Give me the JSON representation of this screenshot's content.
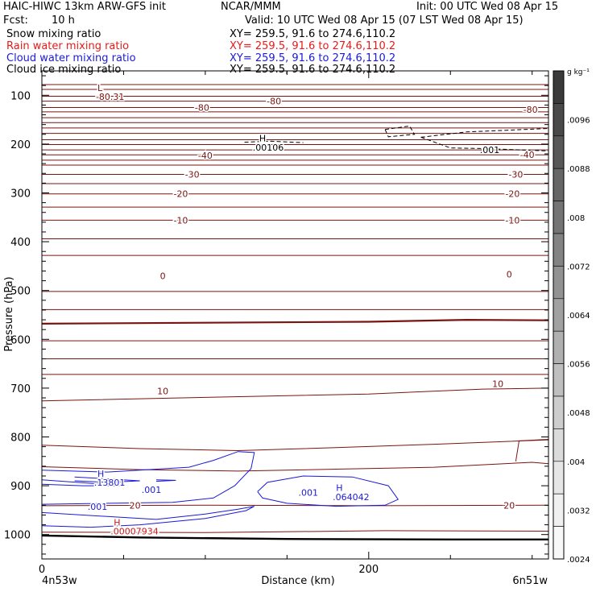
{
  "header": {
    "model": "HAIC-HIWC 13km ARW-GFS init",
    "org": "NCAR/MMM",
    "init": "Init: 00 UTC Wed 08 Apr 15",
    "fcst_label": "Fcst:",
    "fcst_value": "10 h",
    "valid": "Valid: 10 UTC Wed 08 Apr 15 (07 LST Wed 08 Apr 15)",
    "fields": [
      {
        "name": "Snow mixing ratio",
        "xy": "XY= 259.5, 91.6 to 274.6,110.2",
        "color": "#000000"
      },
      {
        "name": "Rain water mixing ratio",
        "xy": "XY= 259.5, 91.6 to 274.6,110.2",
        "color": "#e81a1a"
      },
      {
        "name": "Cloud water mixing ratio",
        "xy": "XY= 259.5, 91.6 to 274.6,110.2",
        "color": "#1a1ad8"
      },
      {
        "name": "Cloud ice mixing ratio",
        "xy": "XY= 259.5, 91.6 to 274.6,110.2",
        "color": "#000000"
      }
    ]
  },
  "colors": {
    "temperature": "#7a1410",
    "cloud_water": "#1a1ad8",
    "rain": "#cc1a1a",
    "ground": "#000000"
  },
  "chart_data": {
    "type": "line",
    "title": "",
    "xlabel": "Distance (km)",
    "ylabel": "Pressure (hPa)",
    "x_ticks": [
      0,
      200
    ],
    "xlim": [
      0,
      310
    ],
    "y_ticks": [
      100,
      200,
      300,
      400,
      500,
      600,
      700,
      800,
      900,
      1000
    ],
    "ylim": [
      1050,
      50
    ],
    "x_endpoints": {
      "left": "4n53w",
      "right": "6n51w"
    },
    "temperature_contours": [
      {
        "label": "-80",
        "at": [
          [
            98,
            125
          ],
          [
            142,
            112
          ],
          [
            299,
            129
          ]
        ]
      },
      {
        "label": "-40",
        "at": [
          [
            100,
            223
          ],
          [
            297,
            222
          ]
        ]
      },
      {
        "label": "-30",
        "at": [
          [
            92,
            262
          ],
          [
            290,
            262
          ]
        ]
      },
      {
        "label": "-20",
        "at": [
          [
            85,
            302
          ],
          [
            288,
            302
          ]
        ]
      },
      {
        "label": "-10",
        "at": [
          [
            85,
            356
          ],
          [
            288,
            356
          ]
        ]
      },
      {
        "label": "0",
        "at": [
          [
            74,
            470
          ],
          [
            286,
            467
          ]
        ]
      },
      {
        "label": "10",
        "at": [
          [
            74,
            706
          ],
          [
            279,
            691
          ]
        ]
      },
      {
        "label": "20",
        "at": [
          [
            57,
            940
          ],
          [
            286,
            940
          ]
        ]
      }
    ],
    "annotations": [
      {
        "text": "L",
        "x": 34,
        "y": 85,
        "color": "temperature"
      },
      {
        "text": "-80.31",
        "x": 33,
        "y": 103,
        "color": "temperature"
      },
      {
        "text": "H",
        "x": 133,
        "y": 188,
        "color": "ground"
      },
      {
        "text": ".00106",
        "x": 129,
        "y": 207,
        "color": "ground"
      },
      {
        "text": ".001",
        "x": 268,
        "y": 212,
        "color": "ground"
      },
      {
        "text": "H",
        "x": 34,
        "y": 875,
        "color": "cloud_water"
      },
      {
        "text": ".13801",
        "x": 32,
        "y": 893,
        "color": "cloud_water"
      },
      {
        "text": ".001",
        "x": 61,
        "y": 908,
        "color": "cloud_water"
      },
      {
        "text": ".001",
        "x": 28,
        "y": 943,
        "color": "cloud_water"
      },
      {
        "text": ".001",
        "x": 157,
        "y": 914,
        "color": "cloud_water"
      },
      {
        "text": "H",
        "x": 180,
        "y": 904,
        "color": "cloud_water"
      },
      {
        "text": ".064042",
        "x": 178,
        "y": 923,
        "color": "cloud_water"
      },
      {
        "text": "H",
        "x": 44,
        "y": 975,
        "color": "rain"
      },
      {
        "text": ".00007934",
        "x": 42,
        "y": 993,
        "color": "rain"
      }
    ],
    "colorbar": {
      "unit": "g kg⁻¹",
      "ticks": [
        ".0096",
        ".0088",
        ".008",
        ".0072",
        ".0064",
        ".0056",
        ".0048",
        ".004",
        ".0032",
        ".0024"
      ],
      "colors": [
        "#3a3a3a",
        "#494949",
        "#585858",
        "#666666",
        "#747474",
        "#838383",
        "#929292",
        "#a1a1a1",
        "#b0b0b0",
        "#bfbfbf",
        "#cdcdcd",
        "#dbdbdb",
        "#e6e6e6",
        "#f0f0f0",
        "#f8f8f8"
      ]
    }
  }
}
